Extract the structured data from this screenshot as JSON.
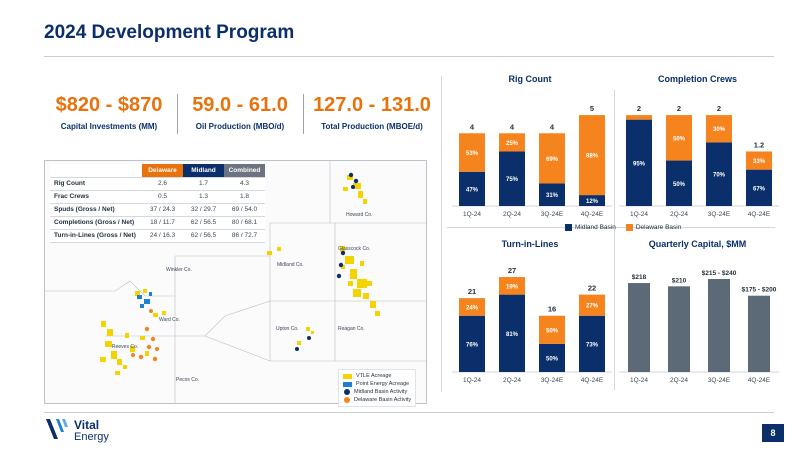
{
  "page": {
    "title": "2024 Development Program",
    "page_number": "8"
  },
  "kpis": [
    {
      "value": "$820 - $870",
      "label": "Capital Investments (MM)"
    },
    {
      "value": "59.0 - 61.0",
      "label": "Oil Production (MBO/d)"
    },
    {
      "value": "127.0 - 131.0",
      "label": "Total Production (MBOE/d)"
    }
  ],
  "stats_table": {
    "headers": [
      "Delaware",
      "Midland",
      "Combined"
    ],
    "rows": [
      {
        "label": "Rig Count",
        "values": [
          "2.6",
          "1.7",
          "4.3"
        ]
      },
      {
        "label": "Frac Crews",
        "values": [
          "0.5",
          "1.3",
          "1.8"
        ]
      },
      {
        "label": "Spuds (Gross / Net)",
        "values": [
          "37 / 24.3",
          "32 / 29.7",
          "69 / 54.0"
        ]
      },
      {
        "label": "Completions (Gross / Net)",
        "values": [
          "18 / 11.7",
          "62 / 56.5",
          "80 / 68.1"
        ]
      },
      {
        "label": "Turn-in-Lines (Gross / Net)",
        "values": [
          "24 / 16.3",
          "62 / 56.5",
          "86 / 72.7"
        ]
      }
    ]
  },
  "map": {
    "counties": [
      "Howard Co.",
      "Glasscock Co.",
      "Winkler Co.",
      "Midland Co.",
      "Ward Co.",
      "Upton Co.",
      "Reagan Co.",
      "Reeves Co.",
      "Pecos Co."
    ],
    "legend": [
      {
        "label": "VTLE Acreage",
        "color": "#f5d300"
      },
      {
        "label": "Point Energy Acreage",
        "color": "#1f7fd1"
      },
      {
        "label": "Midland Basin Activity",
        "color": "#0b2f6b"
      },
      {
        "label": "Delaware Basin Activity",
        "color": "#e8720c"
      }
    ]
  },
  "colors": {
    "midland": "#0b2f6b",
    "delaware": "#f5841f",
    "capital": "#5c6a78",
    "accent": "#e8720c"
  },
  "chart_legend": {
    "midland": "Midland Basin",
    "delaware": "Delaware Basin"
  },
  "chart_data": [
    {
      "id": "rig",
      "type": "bar",
      "stacked": true,
      "title": "Rig Count",
      "categories": [
        "1Q-24",
        "2Q-24",
        "3Q-24E",
        "4Q-24E"
      ],
      "totals": [
        "4",
        "4",
        "4",
        "5"
      ],
      "ylim": [
        0,
        5.5
      ],
      "series": [
        {
          "name": "Midland Basin",
          "values": [
            1.88,
            3.0,
            1.24,
            0.6
          ],
          "labels": [
            "47%",
            "75%",
            "31%",
            "12%"
          ]
        },
        {
          "name": "Delaware Basin",
          "values": [
            2.12,
            1.0,
            2.76,
            4.4
          ],
          "labels": [
            "53%",
            "25%",
            "69%",
            "88%"
          ]
        }
      ]
    },
    {
      "id": "crews",
      "type": "bar",
      "stacked": true,
      "title": "Completion Crews",
      "categories": [
        "1Q-24",
        "2Q-24",
        "3Q-24E",
        "4Q-24E"
      ],
      "totals": [
        "2",
        "2",
        "2",
        "1.2"
      ],
      "ylim": [
        0,
        2.2
      ],
      "series": [
        {
          "name": "Midland Basin",
          "values": [
            1.9,
            1.0,
            1.4,
            0.8
          ],
          "labels": [
            "95%",
            "50%",
            "70%",
            "67%"
          ]
        },
        {
          "name": "Delaware Basin",
          "values": [
            0.1,
            1.0,
            0.6,
            0.4
          ],
          "labels": [
            "",
            "50%",
            "30%",
            "33%"
          ]
        }
      ]
    },
    {
      "id": "til",
      "type": "bar",
      "stacked": true,
      "title": "Turn-in-Lines",
      "categories": [
        "1Q-24",
        "2Q-24",
        "3Q-24E",
        "4Q-24E"
      ],
      "totals": [
        "21",
        "27",
        "16",
        "22"
      ],
      "ylim": [
        0,
        29
      ],
      "series": [
        {
          "name": "Midland Basin",
          "values": [
            16,
            22,
            8,
            16
          ],
          "labels": [
            "76%",
            "81%",
            "50%",
            "73%"
          ]
        },
        {
          "name": "Delaware Basin",
          "values": [
            5,
            5,
            8,
            6
          ],
          "labels": [
            "24%",
            "19%",
            "50%",
            "27%"
          ]
        }
      ]
    },
    {
      "id": "capex",
      "type": "bar",
      "stacked": false,
      "title": "Quarterly Capital, $MM",
      "categories": [
        "1Q-24",
        "2Q-24",
        "3Q-24E",
        "4Q-24E"
      ],
      "totals": [
        "$218",
        "$210",
        "$215 - $240",
        "$175 - $200"
      ],
      "ylim": [
        0,
        250
      ],
      "series": [
        {
          "name": "Capital",
          "values": [
            218,
            210,
            228,
            187
          ],
          "labels": [
            "",
            "",
            "",
            ""
          ]
        }
      ]
    }
  ]
}
